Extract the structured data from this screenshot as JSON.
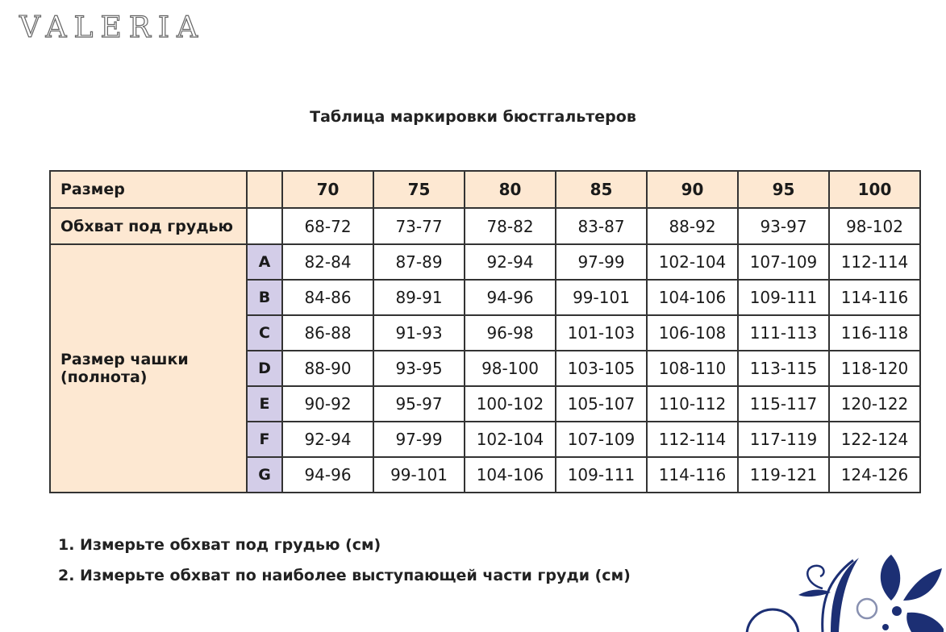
{
  "logo": "VALERIA",
  "title": "Таблица маркировки бюстгальтеров",
  "table": {
    "size_label": "Размер",
    "underbust_label": "Обхват под грудью",
    "cup_label": "Размер чашки (полнота)",
    "sizes": [
      "70",
      "75",
      "80",
      "85",
      "90",
      "95",
      "100"
    ],
    "underbust": [
      "68-72",
      "73-77",
      "78-82",
      "83-87",
      "88-92",
      "93-97",
      "98-102"
    ],
    "cups": [
      {
        "letter": "A",
        "values": [
          "82-84",
          "87-89",
          "92-94",
          "97-99",
          "102-104",
          "107-109",
          "112-114"
        ]
      },
      {
        "letter": "B",
        "values": [
          "84-86",
          "89-91",
          "94-96",
          "99-101",
          "104-106",
          "109-111",
          "114-116"
        ]
      },
      {
        "letter": "C",
        "values": [
          "86-88",
          "91-93",
          "96-98",
          "101-103",
          "106-108",
          "111-113",
          "116-118"
        ]
      },
      {
        "letter": "D",
        "values": [
          "88-90",
          "93-95",
          "98-100",
          "103-105",
          "108-110",
          "113-115",
          "118-120"
        ]
      },
      {
        "letter": "E",
        "values": [
          "90-92",
          "95-97",
          "100-102",
          "105-107",
          "110-112",
          "115-117",
          "120-122"
        ]
      },
      {
        "letter": "F",
        "values": [
          "92-94",
          "97-99",
          "102-104",
          "107-109",
          "112-114",
          "117-119",
          "122-124"
        ]
      },
      {
        "letter": "G",
        "values": [
          "94-96",
          "99-101",
          "104-106",
          "109-111",
          "114-116",
          "119-121",
          "124-126"
        ]
      }
    ]
  },
  "notes": [
    "1. Измерьте обхват под грудью (см)",
    "2. Измерьте обхват по наиболее выступающей части груди (см)"
  ],
  "colors": {
    "header": "#fde8d2",
    "cup_letter": "#d3cde8",
    "ornament": "#1c2f74"
  }
}
